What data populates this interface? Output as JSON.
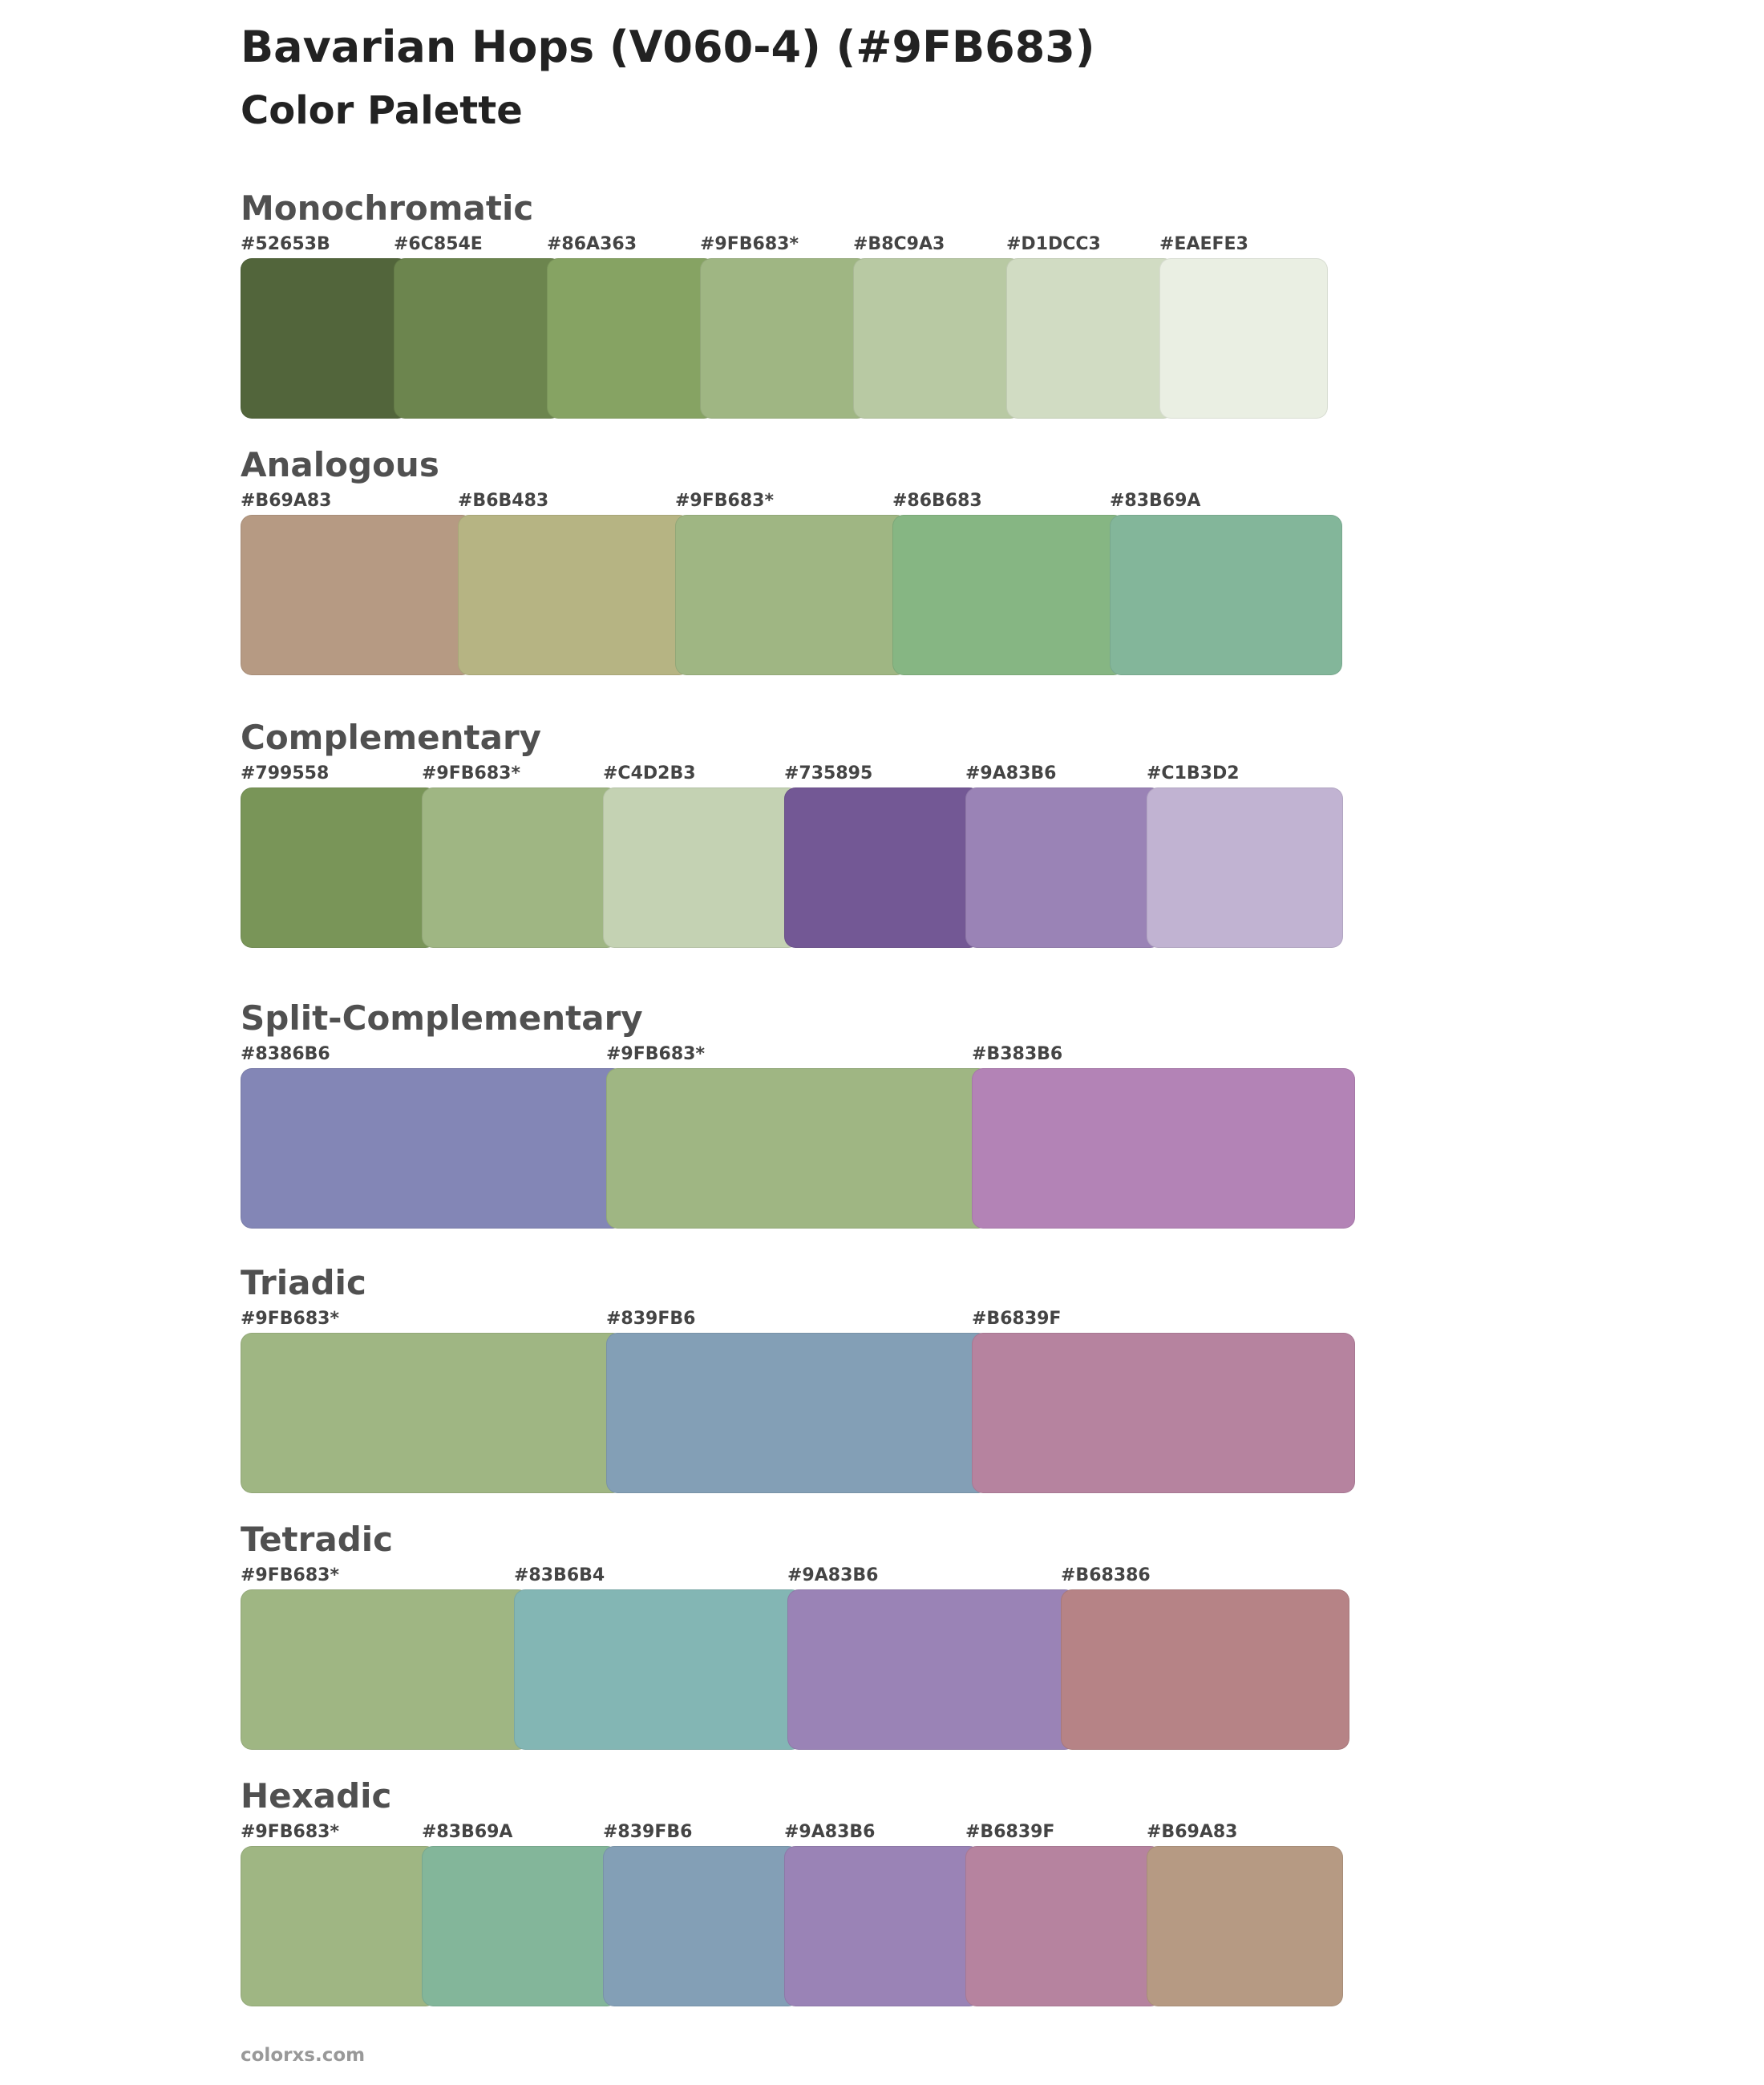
{
  "header": {
    "title": "Bavarian Hops (V060-4) (#9FB683)",
    "subtitle": "Color Palette"
  },
  "palettes": [
    {
      "title": "Monochromatic",
      "swatches": [
        {
          "label": "#52653B",
          "color": "#52653B"
        },
        {
          "label": "#6C854E",
          "color": "#6C854E"
        },
        {
          "label": "#86A363",
          "color": "#86A363"
        },
        {
          "label": "#9FB683*",
          "color": "#9FB683"
        },
        {
          "label": "#B8C9A3",
          "color": "#B8C9A3"
        },
        {
          "label": "#D1DCC3",
          "color": "#D1DCC3"
        },
        {
          "label": "#EAEFE3",
          "color": "#EAEFE3"
        }
      ]
    },
    {
      "title": "Analogous",
      "swatches": [
        {
          "label": "#B69A83",
          "color": "#B69A83"
        },
        {
          "label": "#B6B483",
          "color": "#B6B483"
        },
        {
          "label": "#9FB683*",
          "color": "#9FB683"
        },
        {
          "label": "#86B683",
          "color": "#86B683"
        },
        {
          "label": "#83B69A",
          "color": "#83B69A"
        }
      ]
    },
    {
      "title": "Complementary",
      "swatches": [
        {
          "label": "#799558",
          "color": "#799558"
        },
        {
          "label": "#9FB683*",
          "color": "#9FB683"
        },
        {
          "label": "#C4D2B3",
          "color": "#C4D2B3"
        },
        {
          "label": "#735895",
          "color": "#735895"
        },
        {
          "label": "#9A83B6",
          "color": "#9A83B6"
        },
        {
          "label": "#C1B3D2",
          "color": "#C1B3D2"
        }
      ]
    },
    {
      "title": "Split-Complementary",
      "swatches": [
        {
          "label": "#8386B6",
          "color": "#8386B6"
        },
        {
          "label": "#9FB683*",
          "color": "#9FB683"
        },
        {
          "label": "#B383B6",
          "color": "#B383B6"
        }
      ]
    },
    {
      "title": "Triadic",
      "swatches": [
        {
          "label": "#9FB683*",
          "color": "#9FB683"
        },
        {
          "label": "#839FB6",
          "color": "#839FB6"
        },
        {
          "label": "#B6839F",
          "color": "#B6839F"
        }
      ]
    },
    {
      "title": "Tetradic",
      "swatches": [
        {
          "label": "#9FB683*",
          "color": "#9FB683"
        },
        {
          "label": "#83B6B4",
          "color": "#83B6B4"
        },
        {
          "label": "#9A83B6",
          "color": "#9A83B6"
        },
        {
          "label": "#B68386",
          "color": "#B68386"
        }
      ]
    },
    {
      "title": "Hexadic",
      "swatches": [
        {
          "label": "#9FB683*",
          "color": "#9FB683"
        },
        {
          "label": "#83B69A",
          "color": "#83B69A"
        },
        {
          "label": "#839FB6",
          "color": "#839FB6"
        },
        {
          "label": "#9A83B6",
          "color": "#9A83B6"
        },
        {
          "label": "#B6839F",
          "color": "#B6839F"
        },
        {
          "label": "#B69A83",
          "color": "#B69A83"
        }
      ]
    }
  ],
  "footer": {
    "site": "colorxs.com"
  }
}
